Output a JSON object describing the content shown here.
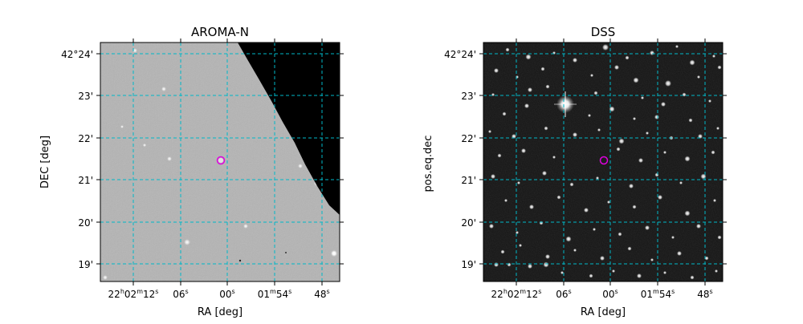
{
  "panels": [
    {
      "title": "AROMA-N",
      "ylabel": "DEC [deg]",
      "xlabel": "RA [deg]",
      "background": "light-gray-survey-image",
      "has_coverage_edge": true,
      "xticks": [
        {
          "main": "22",
          "sup1": "h",
          "mid": "02",
          "sup2": "m",
          "end": "12",
          "sup3": "s"
        },
        {
          "main": "06",
          "sup1": "s",
          "mid": "",
          "sup2": "",
          "end": "",
          "sup3": ""
        },
        {
          "main": "00",
          "sup1": "s",
          "mid": "",
          "sup2": "",
          "end": "",
          "sup3": ""
        },
        {
          "main": "01",
          "sup1": "m",
          "mid": "54",
          "sup2": "s",
          "end": "",
          "sup3": ""
        },
        {
          "main": "48",
          "sup1": "s",
          "mid": "",
          "sup2": "",
          "end": "",
          "sup3": ""
        }
      ],
      "yticks": [
        "42°24'",
        "23'",
        "22'",
        "21'",
        "20'",
        "19'"
      ],
      "marker_color": "#e000e0",
      "grid_color": "#00b8c8"
    },
    {
      "title": "DSS",
      "ylabel": "pos.eq.dec",
      "xlabel": "RA [deg]",
      "background": "dark-star-field-image",
      "has_coverage_edge": false,
      "xticks": [
        {
          "main": "22",
          "sup1": "h",
          "mid": "02",
          "sup2": "m",
          "end": "12",
          "sup3": "s"
        },
        {
          "main": "06",
          "sup1": "s",
          "mid": "",
          "sup2": "",
          "end": "",
          "sup3": ""
        },
        {
          "main": "00",
          "sup1": "s",
          "mid": "",
          "sup2": "",
          "end": "",
          "sup3": ""
        },
        {
          "main": "01",
          "sup1": "m",
          "mid": "54",
          "sup2": "s",
          "end": "",
          "sup3": ""
        },
        {
          "main": "48",
          "sup1": "s",
          "mid": "",
          "sup2": "",
          "end": "",
          "sup3": ""
        }
      ],
      "yticks": [
        "42°24'",
        "23'",
        "22'",
        "21'",
        "20'",
        "19'"
      ],
      "marker_color": "#e000e0",
      "grid_color": "#00b8c8"
    }
  ]
}
